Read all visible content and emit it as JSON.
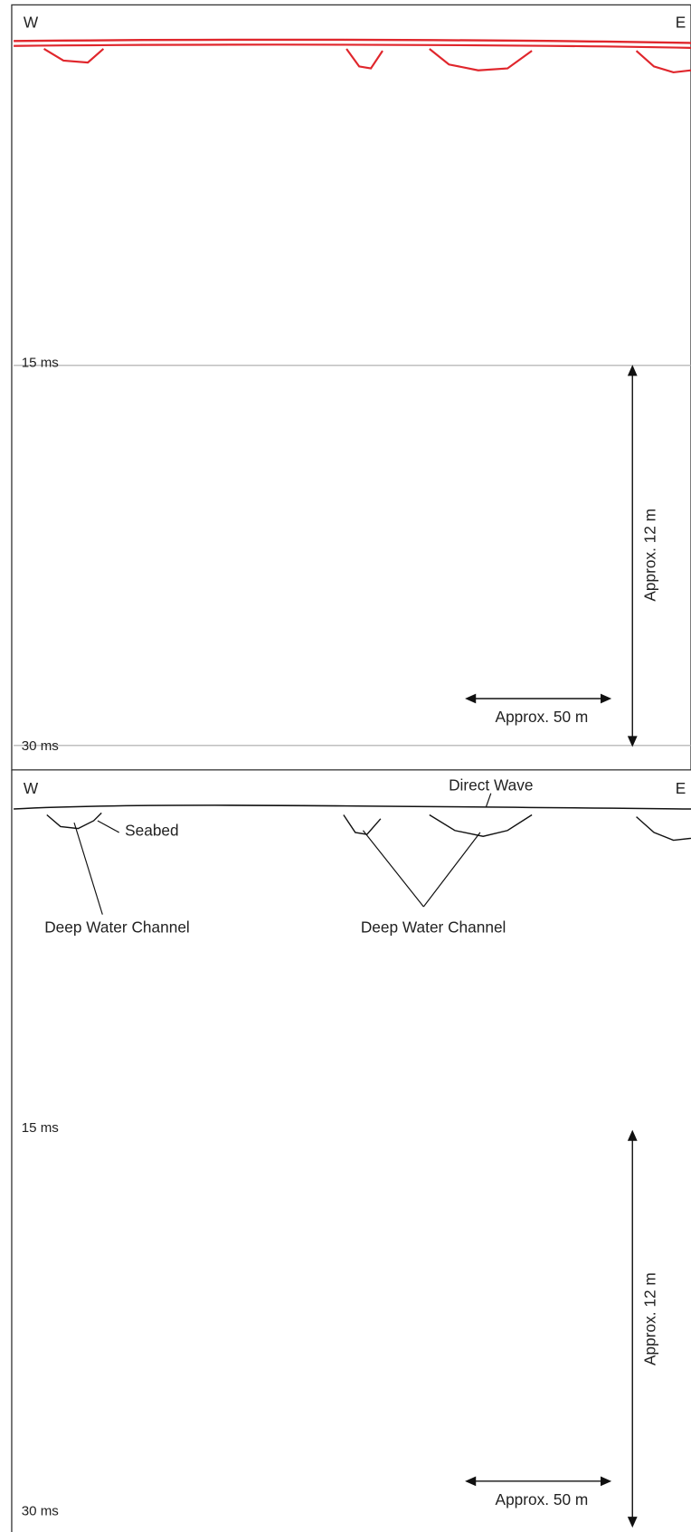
{
  "top_panel": {
    "west": "W",
    "east": "E",
    "time_labels": [
      "15 ms",
      "30 ms"
    ],
    "vertical_scale": "Approx. 12 m",
    "horizontal_scale": "Approx. 50 m"
  },
  "bottom_panel": {
    "west": "W",
    "east": "E",
    "time_labels": [
      "15 ms",
      "30 ms"
    ],
    "direct_wave": "Direct Wave",
    "seabed": "Seabed",
    "channels": [
      "Deep Water Channel",
      "Deep Water Channel"
    ],
    "vertical_scale": "Approx. 12 m",
    "horizontal_scale": "Approx. 50 m"
  }
}
